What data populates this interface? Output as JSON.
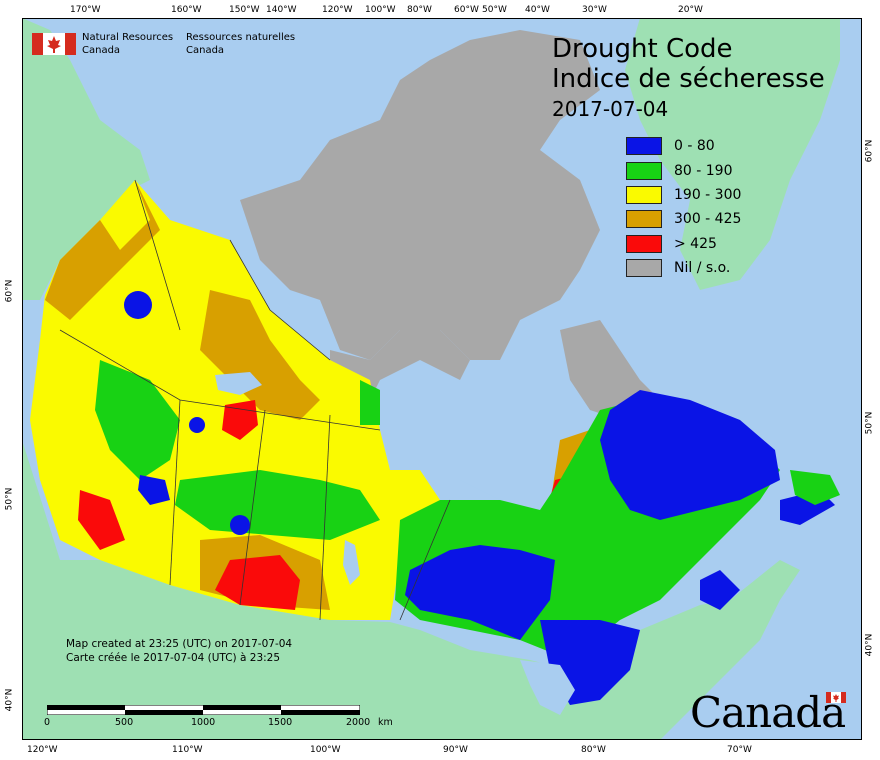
{
  "header": {
    "org_en_1": "Natural Resources",
    "org_en_2": "Canada",
    "org_fr_1": "Ressources naturelles",
    "org_fr_2": "Canada"
  },
  "title": {
    "line1": "Drought Code",
    "line2": "Indice de sécheresse",
    "date": "2017-07-04"
  },
  "legend": [
    {
      "label": "0 - 80",
      "color": "#0a14e6"
    },
    {
      "label": "80 - 190",
      "color": "#18d214"
    },
    {
      "label": "190 - 300",
      "color": "#fafa00"
    },
    {
      "label": "300 - 425",
      "color": "#d8a000"
    },
    {
      "label": "> 425",
      "color": "#fa0a0a"
    },
    {
      "label": "Nil / s.o.",
      "color": "#a8a8a8"
    }
  ],
  "credit": {
    "line1": "Map created at 23:25 (UTC) on 2017-07-04",
    "line2": "Carte créée le 2017-07-04 (UTC) à 23:25"
  },
  "scale_bar": {
    "labels": [
      "0",
      "500",
      "1000",
      "1500",
      "2000"
    ],
    "unit": "km"
  },
  "wordmark": "Canada",
  "graticule": {
    "top": [
      "170°W",
      "160°W",
      "150°W",
      "140°W",
      "120°W",
      "100°W",
      "80°W",
      "60°W",
      "50°W",
      "40°W",
      "30°W",
      "20°W"
    ],
    "bottom": [
      "120°W",
      "110°W",
      "100°W",
      "90°W",
      "80°W",
      "70°W"
    ],
    "left": [
      "60°N",
      "50°N",
      "40°N"
    ],
    "right": [
      "60°N",
      "50°N",
      "40°N"
    ]
  },
  "colors": {
    "ocean": "#a9cdf0",
    "land_other": "#9ee0b3"
  }
}
